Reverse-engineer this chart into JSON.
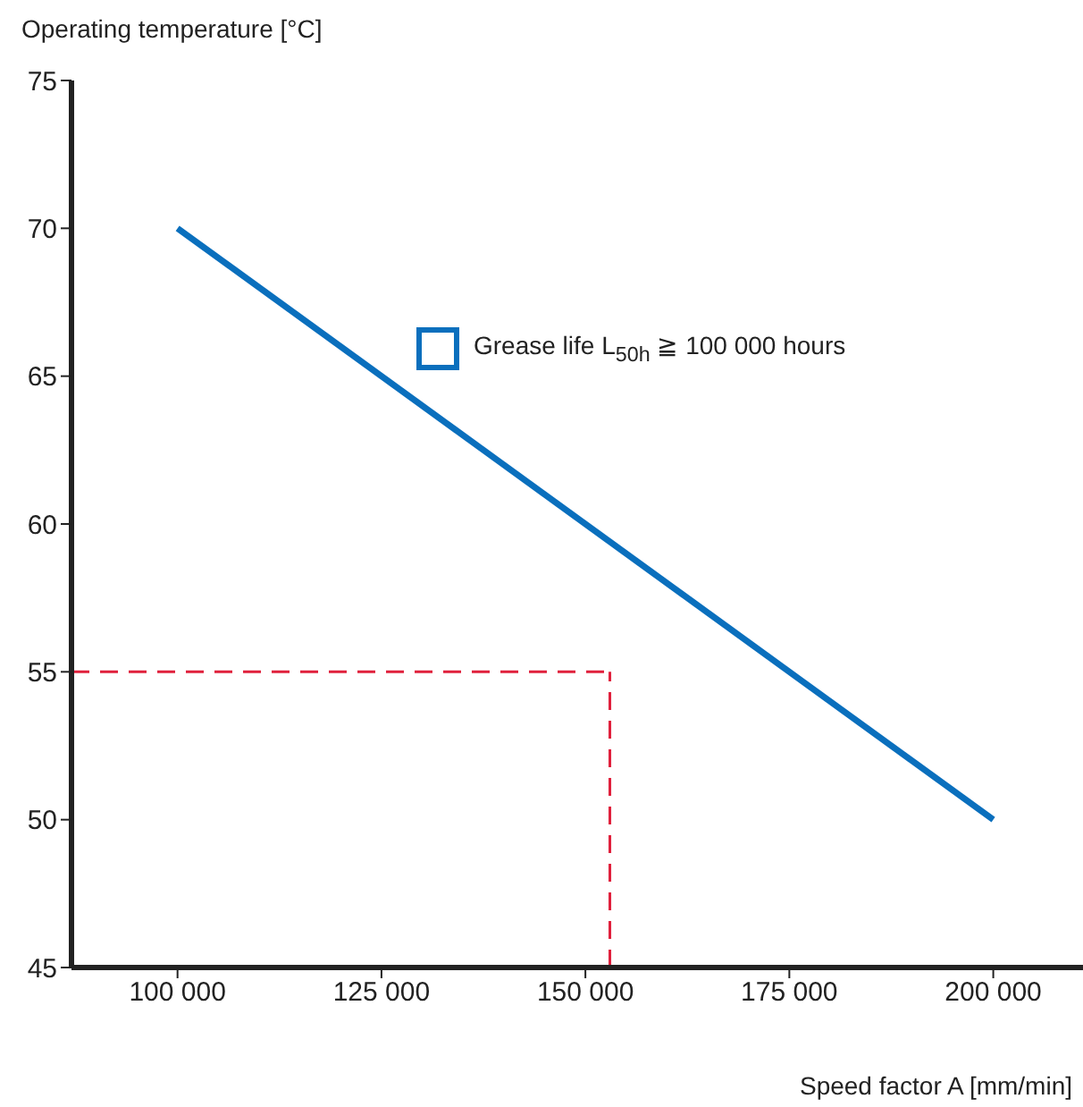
{
  "chart_data": {
    "type": "line",
    "xlabel": "Speed factor A [mm/min]",
    "ylabel": "Operating temperature [°C]",
    "x": [
      100000,
      200000
    ],
    "series": [
      {
        "name": "Grease life L$_{50h}$ ≧ 100 000 hours",
        "color": "#0a6fbd",
        "values": [
          70,
          50
        ]
      }
    ],
    "xlim": [
      87000,
      211000
    ],
    "xticks": [
      {
        "value": 100000,
        "label": "100 000"
      },
      {
        "value": 125000,
        "label": "125 000"
      },
      {
        "value": 150000,
        "label": "150 000"
      },
      {
        "value": 175000,
        "label": "175 000"
      },
      {
        "value": 200000,
        "label": "200 000"
      }
    ],
    "ylim": [
      45,
      75
    ],
    "yticks": [
      45,
      50,
      55,
      60,
      65,
      70,
      75
    ],
    "ref_lines": [
      {
        "axis": "y",
        "value": 55,
        "color": "#e0203c",
        "line_style": "dashed"
      },
      {
        "axis": "x",
        "value": 153000,
        "color": "#e0203c",
        "line_style": "dashed"
      }
    ],
    "legend": "top",
    "grid": false,
    "marker": "none",
    "line_style": "solid"
  }
}
